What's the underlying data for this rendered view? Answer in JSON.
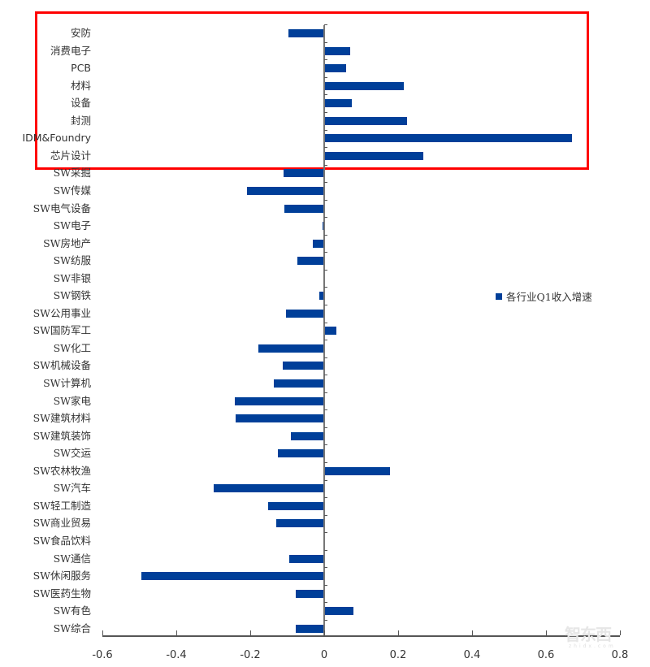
{
  "chart_data": {
    "type": "bar",
    "orientation": "horizontal",
    "title": "",
    "xlabel": "",
    "ylabel": "",
    "xlim": [
      -0.6,
      0.8
    ],
    "xticks": [
      "-0.6",
      "-0.4",
      "-0.2",
      "0",
      "0.2",
      "0.4",
      "0.6",
      "0.8"
    ],
    "legend": {
      "position": "right",
      "entries": [
        "各行业Q1收入增速"
      ]
    },
    "grid": false,
    "highlight": {
      "color": "#ff0000",
      "categories": [
        "安防",
        "消费电子",
        "PCB",
        "材料",
        "设备",
        "封测",
        "IDM&Foundry",
        "芯片设计"
      ]
    },
    "categories": [
      "安防",
      "消费电子",
      "PCB",
      "材料",
      "设备",
      "封测",
      "IDM&Foundry",
      "芯片设计",
      "SW采掘",
      "SW传媒",
      "SW电气设备",
      "SW电子",
      "SW房地产",
      "SW纺服",
      "SW非银",
      "SW钢铁",
      "SW公用事业",
      "SW国防军工",
      "SW化工",
      "SW机械设备",
      "SW计算机",
      "SW家电",
      "SW建筑材料",
      "SW建筑装饰",
      "SW交运",
      "SW农林牧渔",
      "SW汽车",
      "SW轻工制造",
      "SW商业贸易",
      "SW食品饮料",
      "SW通信",
      "SW休闲服务",
      "SW医药生物",
      "SW有色",
      "SW综合"
    ],
    "series": [
      {
        "name": "各行业Q1收入增速",
        "color": "#003f99",
        "values": [
          -0.097,
          0.07,
          0.059,
          0.215,
          0.075,
          0.224,
          0.67,
          0.268,
          -0.11,
          -0.208,
          -0.108,
          -0.005,
          -0.031,
          -0.073,
          0.0,
          -0.013,
          -0.104,
          0.034,
          -0.178,
          -0.112,
          -0.137,
          -0.242,
          -0.239,
          -0.09,
          -0.125,
          0.178,
          -0.299,
          -0.152,
          -0.13,
          0.0,
          -0.094,
          -0.494,
          -0.077,
          0.079,
          -0.077
        ]
      }
    ]
  },
  "legend_label": "各行业Q1收入增速",
  "watermark": {
    "text": "智东西",
    "sub": "zhidx.com"
  }
}
